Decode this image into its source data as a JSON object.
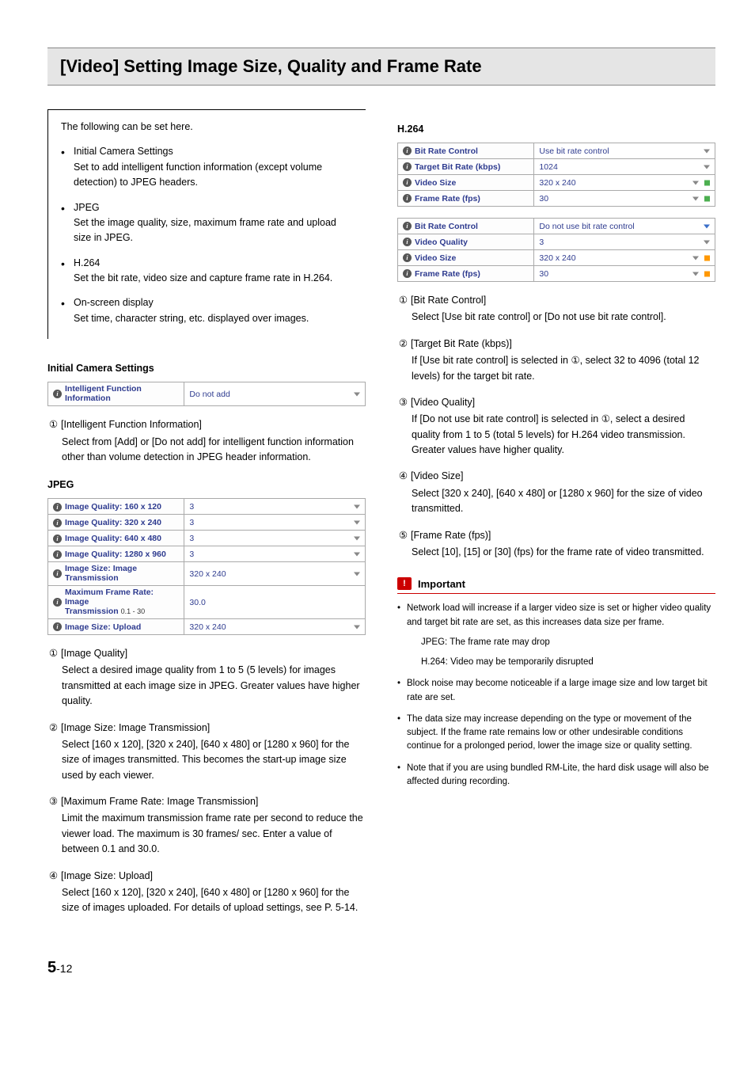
{
  "title": "[Video] Setting Image Size, Quality and Frame Rate",
  "intro": {
    "lead": "The following can be set here.",
    "items": [
      {
        "head": "Initial Camera Settings",
        "body": "Set to add intelligent function information (except volume detection) to JPEG headers."
      },
      {
        "head": "JPEG",
        "body": "Set the image quality, size, maximum frame rate and upload size in JPEG."
      },
      {
        "head": "H.264",
        "body": "Set the bit rate, video size and capture frame rate in H.264."
      },
      {
        "head": "On-screen display",
        "body": "Set time, character string, etc. displayed over images."
      }
    ]
  },
  "initial": {
    "heading": "Initial Camera Settings",
    "row_label_a": "Intelligent Function",
    "row_label_b": "Information",
    "row_value": "Do not add",
    "desc_num": "①",
    "desc_head": "[Intelligent Function Information]",
    "desc_body": "Select from [Add] or [Do not add] for intelligent function information other than volume detection in JPEG header information."
  },
  "jpeg": {
    "heading": "JPEG",
    "rows": [
      {
        "label": "Image Quality: 160 x 120",
        "value": "3",
        "tri": true
      },
      {
        "label": "Image Quality: 320 x 240",
        "value": "3",
        "tri": true
      },
      {
        "label": "Image Quality: 640 x 480",
        "value": "3",
        "tri": true
      },
      {
        "label": "Image Quality: 1280 x 960",
        "value": "3",
        "tri": true
      },
      {
        "label_a": "Image Size: Image",
        "label_b": "Transmission",
        "value": "320 x 240",
        "tri": true
      },
      {
        "label_a": "Maximum Frame Rate: Image",
        "label_b": "Transmission",
        "sub": "0.1 - 30",
        "value": "30.0"
      },
      {
        "label": "Image Size: Upload",
        "value": "320 x 240",
        "tri": true
      }
    ],
    "items": [
      {
        "num": "①",
        "head": "[Image Quality]",
        "body": "Select a desired image quality from 1 to 5 (5 levels) for images transmitted at each image size in JPEG. Greater values have higher quality."
      },
      {
        "num": "②",
        "head": "[Image Size: Image Transmission]",
        "body": "Select [160 x 120], [320 x 240], [640 x 480] or [1280 x 960] for the size of images transmitted. This becomes the start-up image size used by each viewer."
      },
      {
        "num": "③",
        "head": "[Maximum Frame Rate: Image Transmission]",
        "body": "Limit the maximum transmission frame rate per second to reduce the viewer load. The maximum is 30 frames/ sec. Enter a value of between 0.1 and 30.0."
      },
      {
        "num": "④",
        "head": "[Image Size: Upload]",
        "body": "Select [160 x 120], [320 x 240], [640 x 480] or [1280 x 960] for the size of images uploaded. For details of upload settings, see P. 5-14."
      }
    ]
  },
  "h264": {
    "heading": "H.264",
    "table1": [
      {
        "label": "Bit Rate Control",
        "value": "Use bit rate control",
        "tri": true
      },
      {
        "label": "Target Bit Rate (kbps)",
        "value": "1024",
        "tri": true
      },
      {
        "label": "Video Size",
        "value": "320 x 240",
        "tri": true,
        "sq": "green"
      },
      {
        "label": "Frame Rate (fps)",
        "value": "30",
        "tri": true,
        "sq": "green"
      }
    ],
    "table2": [
      {
        "label": "Bit Rate Control",
        "value": "Do not use bit rate control",
        "tri_blue": true
      },
      {
        "label": "Video Quality",
        "value": "3",
        "tri": true
      },
      {
        "label": "Video Size",
        "value": "320 x 240",
        "tri": true,
        "sq": "orange"
      },
      {
        "label": "Frame Rate (fps)",
        "value": "30",
        "tri": true,
        "sq": "orange"
      }
    ],
    "items": [
      {
        "num": "①",
        "head": "[Bit Rate Control]",
        "body": "Select [Use bit rate control] or [Do not use bit rate control]."
      },
      {
        "num": "②",
        "head": "[Target Bit Rate (kbps)]",
        "body": "If [Use bit rate control] is selected in ①, select 32 to 4096 (total 12 levels) for the target bit rate."
      },
      {
        "num": "③",
        "head": "[Video Quality]",
        "body": "If [Do not use bit rate control] is selected in ①, select a desired quality from 1 to 5 (total 5 levels) for H.264 video transmission.\nGreater values have higher quality."
      },
      {
        "num": "④",
        "head": "[Video Size]",
        "body": "Select [320 x 240], [640 x 480] or [1280 x 960] for the size of video transmitted."
      },
      {
        "num": "⑤",
        "head": "[Frame Rate (fps)]",
        "body": "Select [10], [15] or [30] (fps) for the frame rate of video transmitted."
      }
    ]
  },
  "important": {
    "label": "Important",
    "bullets": [
      {
        "text": "Network load will increase if a larger video size is set or higher video quality and target bit rate are set, as this increases data size per frame.",
        "subs": [
          "JPEG: The frame rate may drop",
          "H.264: Video may be temporarily disrupted"
        ]
      },
      {
        "text": "Block noise may become noticeable if a large image size and low target bit rate are set."
      },
      {
        "text": "The data size may increase depending on the type or movement of the subject. If the frame rate remains low or other undesirable conditions continue for a prolonged period, lower the image size or quality setting."
      },
      {
        "text": "Note that if you are using bundled RM-Lite, the hard disk usage will also be affected during recording."
      }
    ]
  },
  "footer": {
    "chapter": "5",
    "page": "-12"
  }
}
